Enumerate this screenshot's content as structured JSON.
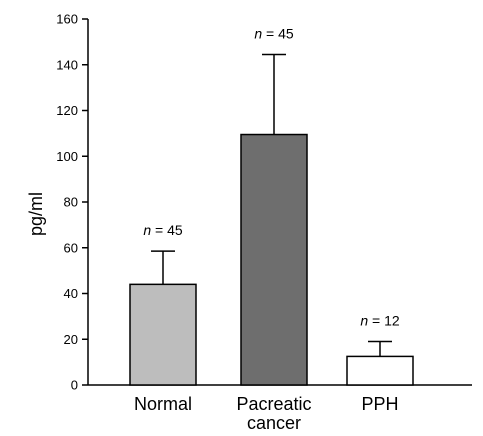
{
  "chart_data": {
    "type": "bar",
    "title": "",
    "xlabel": "",
    "ylabel": "pg/ml",
    "ylim": [
      0,
      160
    ],
    "yticks": [
      0,
      20,
      40,
      60,
      80,
      100,
      120,
      140,
      160
    ],
    "grid": false,
    "legend": "none",
    "categories": [
      {
        "label_lines": [
          "Normal"
        ],
        "value": 44,
        "error": 14.5,
        "n_prefix": "n",
        "n_suffix": " = 45",
        "color": "#bdbdbd"
      },
      {
        "label_lines": [
          "Pacreatic",
          "cancer"
        ],
        "value": 109.5,
        "error": 35,
        "n_prefix": "n",
        "n_suffix": " = 45",
        "color": "#6e6e6e"
      },
      {
        "label_lines": [
          "PPH"
        ],
        "value": 12.5,
        "error": 6.5,
        "n_prefix": "n",
        "n_suffix": " = 12",
        "color": "#ffffff"
      }
    ]
  }
}
